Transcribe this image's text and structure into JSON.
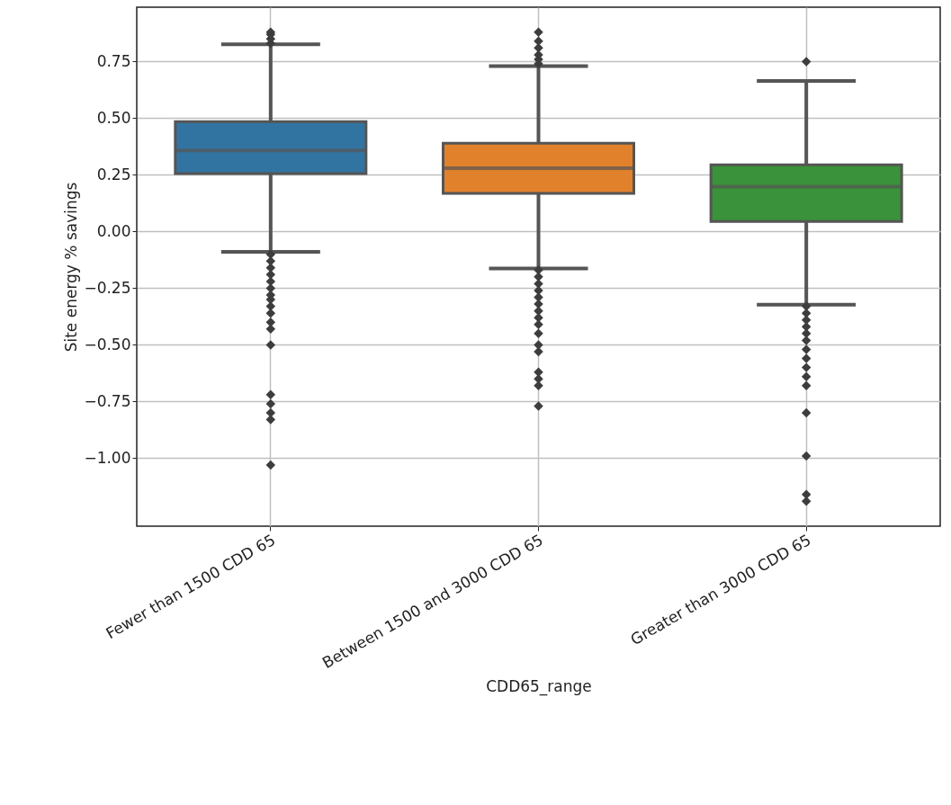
{
  "chart_data": {
    "type": "box",
    "xlabel": "CDD65_range",
    "ylabel": "Site energy % savings",
    "categories": [
      "Fewer than 1500 CDD 65",
      "Between 1500 and 3000 CDD 65",
      "Greater than 3000 CDD 65"
    ],
    "colors": [
      "#3274a1",
      "#e1812c",
      "#3a923a"
    ],
    "boxes": [
      {
        "low": -0.09,
        "q1": 0.256,
        "median": 0.358,
        "q3": 0.485,
        "high": 0.826,
        "outliers": [
          0.83,
          0.85,
          0.87,
          0.88,
          -0.1,
          -0.13,
          -0.16,
          -0.19,
          -0.22,
          -0.25,
          -0.28,
          -0.3,
          -0.33,
          -0.36,
          -0.4,
          -0.43,
          -0.5,
          -0.72,
          -0.76,
          -0.8,
          -0.83,
          -1.03
        ]
      },
      {
        "low": -0.163,
        "q1": 0.168,
        "median": 0.28,
        "q3": 0.39,
        "high": 0.73,
        "outliers": [
          0.74,
          0.76,
          0.78,
          0.81,
          0.84,
          0.88,
          -0.17,
          -0.2,
          -0.23,
          -0.26,
          -0.29,
          -0.32,
          -0.35,
          -0.38,
          -0.41,
          -0.45,
          -0.5,
          -0.53,
          -0.62,
          -0.65,
          -0.68,
          -0.77
        ]
      },
      {
        "low": -0.323,
        "q1": 0.044,
        "median": 0.198,
        "q3": 0.294,
        "high": 0.665,
        "outliers": [
          0.75,
          -0.33,
          -0.36,
          -0.39,
          -0.42,
          -0.45,
          -0.48,
          -0.52,
          -0.56,
          -0.6,
          -0.64,
          -0.68,
          -0.8,
          -0.99,
          -1.16,
          -1.19
        ]
      }
    ],
    "ylim": [
      -1.3,
      0.99
    ],
    "yticks": [
      {
        "value": -1,
        "label": "−1.00"
      },
      {
        "value": -0.75,
        "label": "−0.75"
      },
      {
        "value": -0.5,
        "label": "−0.50"
      },
      {
        "value": -0.25,
        "label": "−0.25"
      },
      {
        "value": 0,
        "label": "0.00"
      },
      {
        "value": 0.25,
        "label": "0.25"
      },
      {
        "value": 0.5,
        "label": "0.50"
      },
      {
        "value": 0.75,
        "label": "0.75"
      }
    ],
    "grid": true,
    "marker": "diamond"
  }
}
